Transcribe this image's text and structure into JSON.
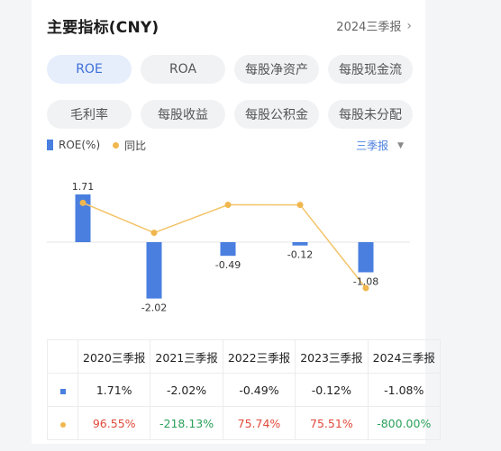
{
  "header": {
    "title": "主要指标(CNY)",
    "period": "2024三季报"
  },
  "tabs": [
    {
      "label": "ROE",
      "active": true
    },
    {
      "label": "ROA",
      "active": false
    },
    {
      "label": "每股净资产",
      "active": false
    },
    {
      "label": "每股现金流",
      "active": false
    },
    {
      "label": "毛利率",
      "active": false
    },
    {
      "label": "每股收益",
      "active": false
    },
    {
      "label": "每股公积金",
      "active": false
    },
    {
      "label": "每股未分配",
      "active": false
    }
  ],
  "legend": {
    "bar_label": "ROE(%)",
    "line_label": "同比"
  },
  "frequency": "三季报",
  "colors": {
    "bar": "#4a7fe0",
    "line": "#f0b74e",
    "positive": "#e04a3a",
    "negative": "#2aa05a",
    "active_tab": "#3d6fd6"
  },
  "chart_data": {
    "type": "bar",
    "categories": [
      "2020三季报",
      "2021三季报",
      "2022三季报",
      "2023三季报",
      "2024三季报"
    ],
    "series": [
      {
        "name": "ROE(%)",
        "type": "bar",
        "values": [
          1.71,
          -2.02,
          -0.49,
          -0.12,
          -1.08
        ],
        "labels": [
          "1.71",
          "-2.02",
          "-0.49",
          "-0.12",
          "-1.08"
        ]
      },
      {
        "name": "同比",
        "type": "line",
        "values": [
          96.55,
          -218.13,
          75.74,
          75.51,
          -800.0
        ]
      }
    ]
  },
  "table": {
    "headers": [
      "2020三季报",
      "2021三季报",
      "2022三季报",
      "2023三季报",
      "2024三季报"
    ],
    "roe_row": [
      "1.71%",
      "-2.02%",
      "-0.49%",
      "-0.12%",
      "-1.08%"
    ],
    "yoy_row": [
      "96.55%",
      "-218.13%",
      "75.74%",
      "75.51%",
      "-800.00%"
    ]
  }
}
